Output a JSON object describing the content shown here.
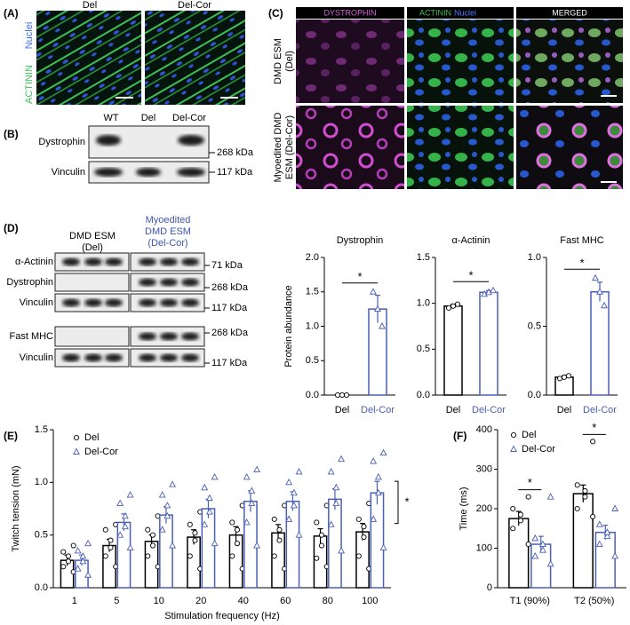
{
  "figure": {
    "panel_labels": [
      "(A)",
      "(B)",
      "(C)",
      "(D)",
      "(E)",
      "(F)"
    ],
    "a": {
      "columns": [
        "Del",
        "Del-Cor"
      ],
      "stain": [
        "ACTININ",
        "Nuclei"
      ]
    },
    "b": {
      "lanes": [
        "WT",
        "Del",
        "Del-Cor"
      ],
      "rows": [
        "Dystrophin",
        "Vinculin"
      ],
      "sizes": [
        "268 kDa",
        "117 kDa"
      ]
    },
    "c": {
      "headers": [
        "DYSTROPHIN",
        "ACTININ",
        "Nuclei",
        "MERGED"
      ],
      "rows": [
        [
          "DMD ESM",
          "(Del)"
        ],
        [
          "Myoedited DMD",
          "ESM (Del-Cor)"
        ]
      ]
    },
    "d": {
      "groups": [
        [
          "DMD ESM",
          "(Del)"
        ],
        [
          "Myoedited",
          "DMD ESM",
          "(Del-Cor)"
        ]
      ],
      "rows": [
        "α-Actinin",
        "Dystrophin",
        "Vinculin",
        "Fast MHC",
        "Vinculin"
      ],
      "sizes": [
        "71 kDa",
        "268 kDa",
        "117 kDa",
        "268 kDa",
        "117 kDa"
      ]
    }
  },
  "chart_data": [
    {
      "type": "bar",
      "title": "Dystrophin",
      "ylabel": "Protein abundance",
      "categories": [
        "Del",
        "Del-Cor"
      ],
      "colors": [
        "#000000",
        "#4a5fb5"
      ],
      "markers": [
        "circle",
        "triangle"
      ],
      "values": [
        0,
        1.25
      ],
      "errors": [
        0,
        0.2
      ],
      "points": [
        [
          0,
          0,
          0
        ],
        [
          1.5,
          1.25,
          1.0
        ]
      ],
      "ylim": [
        0,
        2
      ],
      "yticks": [
        {
          "value": 0,
          "label": "0.0"
        },
        0.5,
        {
          "value": 1,
          "label": "1.0"
        },
        1.5,
        {
          "value": 2,
          "label": "2.0"
        }
      ],
      "annotation": "*"
    },
    {
      "type": "bar",
      "title": "α-Actinin",
      "categories": [
        "Del",
        "Del-Cor"
      ],
      "colors": [
        "#000000",
        "#4a5fb5"
      ],
      "markers": [
        "circle",
        "triangle"
      ],
      "values": [
        0.97,
        1.12
      ],
      "errors": [
        0.02,
        0.02
      ],
      "points": [
        [
          0.95,
          0.97,
          0.99
        ],
        [
          1.1,
          1.12,
          1.14
        ]
      ],
      "ylim": [
        0,
        1.5
      ],
      "yticks": [
        {
          "value": 0,
          "label": "0.0"
        },
        0.5,
        {
          "value": 1,
          "label": "1.0"
        },
        1.5
      ],
      "annotation": "*"
    },
    {
      "type": "bar",
      "title": "Fast MHC",
      "categories": [
        "Del",
        "Del-Cor"
      ],
      "colors": [
        "#000000",
        "#4a5fb5"
      ],
      "markers": [
        "circle",
        "triangle"
      ],
      "values": [
        0.13,
        0.75
      ],
      "errors": [
        0.01,
        0.07
      ],
      "points": [
        [
          0.12,
          0.13,
          0.14
        ],
        [
          0.85,
          0.75,
          0.65
        ]
      ],
      "ylim": [
        0,
        1
      ],
      "yticks": [
        {
          "value": 0,
          "label": "0.0"
        },
        0.5,
        {
          "value": 1,
          "label": "1.0"
        }
      ],
      "annotation": "*"
    },
    {
      "type": "grouped-bar",
      "xlabel": "Stimulation frequency (Hz)",
      "ylabel": "Twitch tension (mN)",
      "categories": [
        "1",
        "5",
        "10",
        "20",
        "40",
        "60",
        "80",
        "100"
      ],
      "ylim": [
        0,
        1.5
      ],
      "yticks": [
        {
          "value": 0,
          "label": "0.0"
        },
        0.5,
        {
          "value": 1,
          "label": "1.0"
        },
        1.5
      ],
      "annotation": "*",
      "series": [
        {
          "name": "Del",
          "color": "#000000",
          "marker": "circle",
          "values": [
            0.26,
            0.4,
            0.44,
            0.48,
            0.5,
            0.52,
            0.49,
            0.53
          ],
          "errors": [
            0.05,
            0.06,
            0.06,
            0.07,
            0.08,
            0.08,
            0.07,
            0.08
          ],
          "points": [
            [
              0.15,
              0.2,
              0.25,
              0.3,
              0.34,
              0.4
            ],
            [
              0.2,
              0.3,
              0.38,
              0.45,
              0.55,
              0.6
            ],
            [
              0.2,
              0.3,
              0.4,
              0.5,
              0.55,
              0.68
            ],
            [
              0.18,
              0.3,
              0.45,
              0.52,
              0.6,
              0.72
            ],
            [
              0.18,
              0.3,
              0.42,
              0.55,
              0.62,
              0.78
            ],
            [
              0.18,
              0.3,
              0.45,
              0.55,
              0.65,
              0.78
            ],
            [
              0.2,
              0.28,
              0.4,
              0.5,
              0.62,
              0.78
            ],
            [
              0.18,
              0.3,
              0.48,
              0.58,
              0.65,
              0.8
            ]
          ]
        },
        {
          "name": "Del-Cor",
          "color": "#4a5fb5",
          "marker": "triangle",
          "values": [
            0.26,
            0.62,
            0.69,
            0.75,
            0.82,
            0.82,
            0.84,
            0.9
          ],
          "errors": [
            0.05,
            0.08,
            0.08,
            0.09,
            0.1,
            0.09,
            0.1,
            0.11
          ],
          "points": [
            [
              0.12,
              0.18,
              0.25,
              0.3,
              0.35,
              0.42
            ],
            [
              0.38,
              0.5,
              0.58,
              0.68,
              0.8,
              0.88
            ],
            [
              0.4,
              0.55,
              0.68,
              0.78,
              0.88,
              0.98
            ],
            [
              0.42,
              0.6,
              0.72,
              0.85,
              0.95,
              1.05
            ],
            [
              0.4,
              0.62,
              0.8,
              0.92,
              1.05,
              1.12
            ],
            [
              0.5,
              0.65,
              0.78,
              0.9,
              1.0,
              1.1
            ],
            [
              0.35,
              0.6,
              0.8,
              0.95,
              1.1,
              1.22
            ],
            [
              0.38,
              0.65,
              0.9,
              1.05,
              1.2,
              1.28
            ]
          ]
        }
      ]
    },
    {
      "type": "grouped-bar",
      "ylabel": "Time (ms)",
      "categories": [
        "T1 (90%)",
        "T2 (50%)"
      ],
      "ylim": [
        0,
        400
      ],
      "yticks": [
        0,
        100,
        200,
        300,
        400
      ],
      "annotations": [
        "*",
        "*"
      ],
      "series": [
        {
          "name": "Del",
          "color": "#000000",
          "marker": "circle",
          "values": [
            175,
            238
          ],
          "errors": [
            18,
            22
          ],
          "points": [
            [
              110,
              150,
              170,
              185,
              200,
              230
            ],
            [
              180,
              200,
              230,
              245,
              260,
              370
            ]
          ]
        },
        {
          "name": "Del-Cor",
          "color": "#4a5fb5",
          "marker": "triangle",
          "values": [
            110,
            140
          ],
          "errors": [
            20,
            18
          ],
          "points": [
            [
              60,
              80,
              95,
              110,
              125,
              230
            ],
            [
              80,
              110,
              130,
              140,
              160,
              200
            ]
          ]
        }
      ]
    }
  ]
}
